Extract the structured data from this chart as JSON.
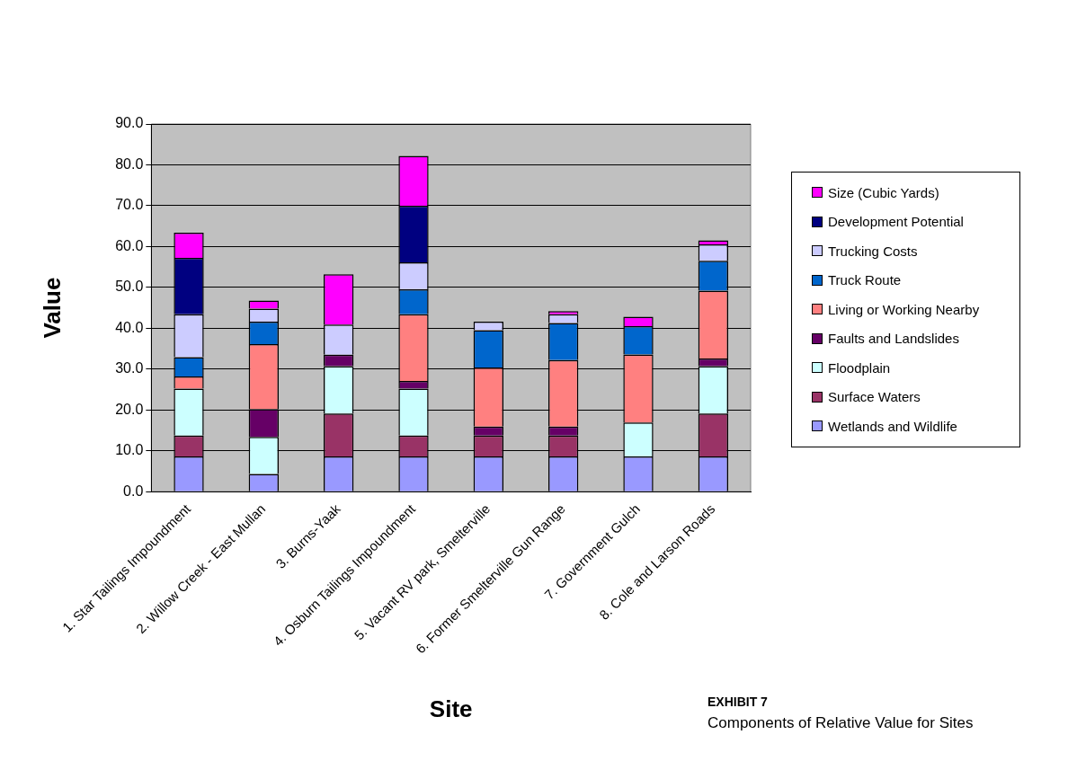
{
  "chart_data": {
    "type": "bar",
    "stacked": true,
    "xlabel": "Site",
    "ylabel": "Value",
    "categories": [
      "1. Star Tailings Impoundment",
      "2. Willow Creek - East Mullan",
      "3. Burns-Yaak",
      "4. Osburn Tailings Impoundment",
      "5. Vacant RV park, Smelterville",
      "6. Former Smelterville Gun Range",
      "7. Government Gulch",
      "8. Cole and Larson Roads"
    ],
    "series": [
      {
        "name": "Wetlands and Wildlife",
        "color": "#9999ff",
        "values": [
          8.6,
          4.3,
          8.6,
          8.6,
          8.6,
          8.6,
          8.6,
          8.6
        ]
      },
      {
        "name": "Surface Waters",
        "color": "#993366",
        "values": [
          5.1,
          0,
          10.5,
          5.1,
          5.1,
          5.1,
          0,
          10.5
        ]
      },
      {
        "name": "Floodplain",
        "color": "#ccffff",
        "values": [
          11.5,
          9.1,
          11.6,
          11.5,
          0,
          0,
          8.3,
          11.6
        ]
      },
      {
        "name": "Faults and Landslides",
        "color": "#660066",
        "values": [
          0,
          6.8,
          2.8,
          1.9,
          2.2,
          2.2,
          0,
          1.9
        ]
      },
      {
        "name": "Living or Working Nearby",
        "color": "#ff8080",
        "values": [
          3.0,
          15.9,
          0,
          16.3,
          14.5,
          16.3,
          16.7,
          16.6
        ]
      },
      {
        "name": "Truck Route",
        "color": "#0066cc",
        "values": [
          4.7,
          5.5,
          0,
          6.1,
          9.1,
          9.1,
          6.9,
          7.3
        ]
      },
      {
        "name": "Trucking Costs",
        "color": "#ccccff",
        "values": [
          10.5,
          3.2,
          7.4,
          6.6,
          2.1,
          2.1,
          0,
          4.0
        ]
      },
      {
        "name": "Development Potential",
        "color": "#000080",
        "values": [
          13.8,
          0,
          0,
          13.9,
          0,
          0,
          0,
          0
        ]
      },
      {
        "name": "Size (Cubic Yards)",
        "color": "#ff00ff",
        "values": [
          6.2,
          2.0,
          12.3,
          12.2,
          0,
          0.8,
          2.3,
          1.0
        ]
      }
    ],
    "ylim": [
      0,
      90
    ],
    "yticks": [
      {
        "value": 0,
        "label": "0.0"
      },
      {
        "value": 10,
        "label": "10.0"
      },
      {
        "value": 20,
        "label": "20.0"
      },
      {
        "value": 30,
        "label": "30.0"
      },
      {
        "value": 40,
        "label": "40.0"
      },
      {
        "value": 50,
        "label": "50.0"
      },
      {
        "value": 60,
        "label": "60.0"
      },
      {
        "value": 70,
        "label": "70.0"
      },
      {
        "value": 80,
        "label": "80.0"
      },
      {
        "value": 90,
        "label": "90.0"
      }
    ],
    "grid": "y",
    "legend": "right",
    "annotations": [
      "EXHIBIT 7",
      "Components of Relative Value for Sites"
    ]
  }
}
